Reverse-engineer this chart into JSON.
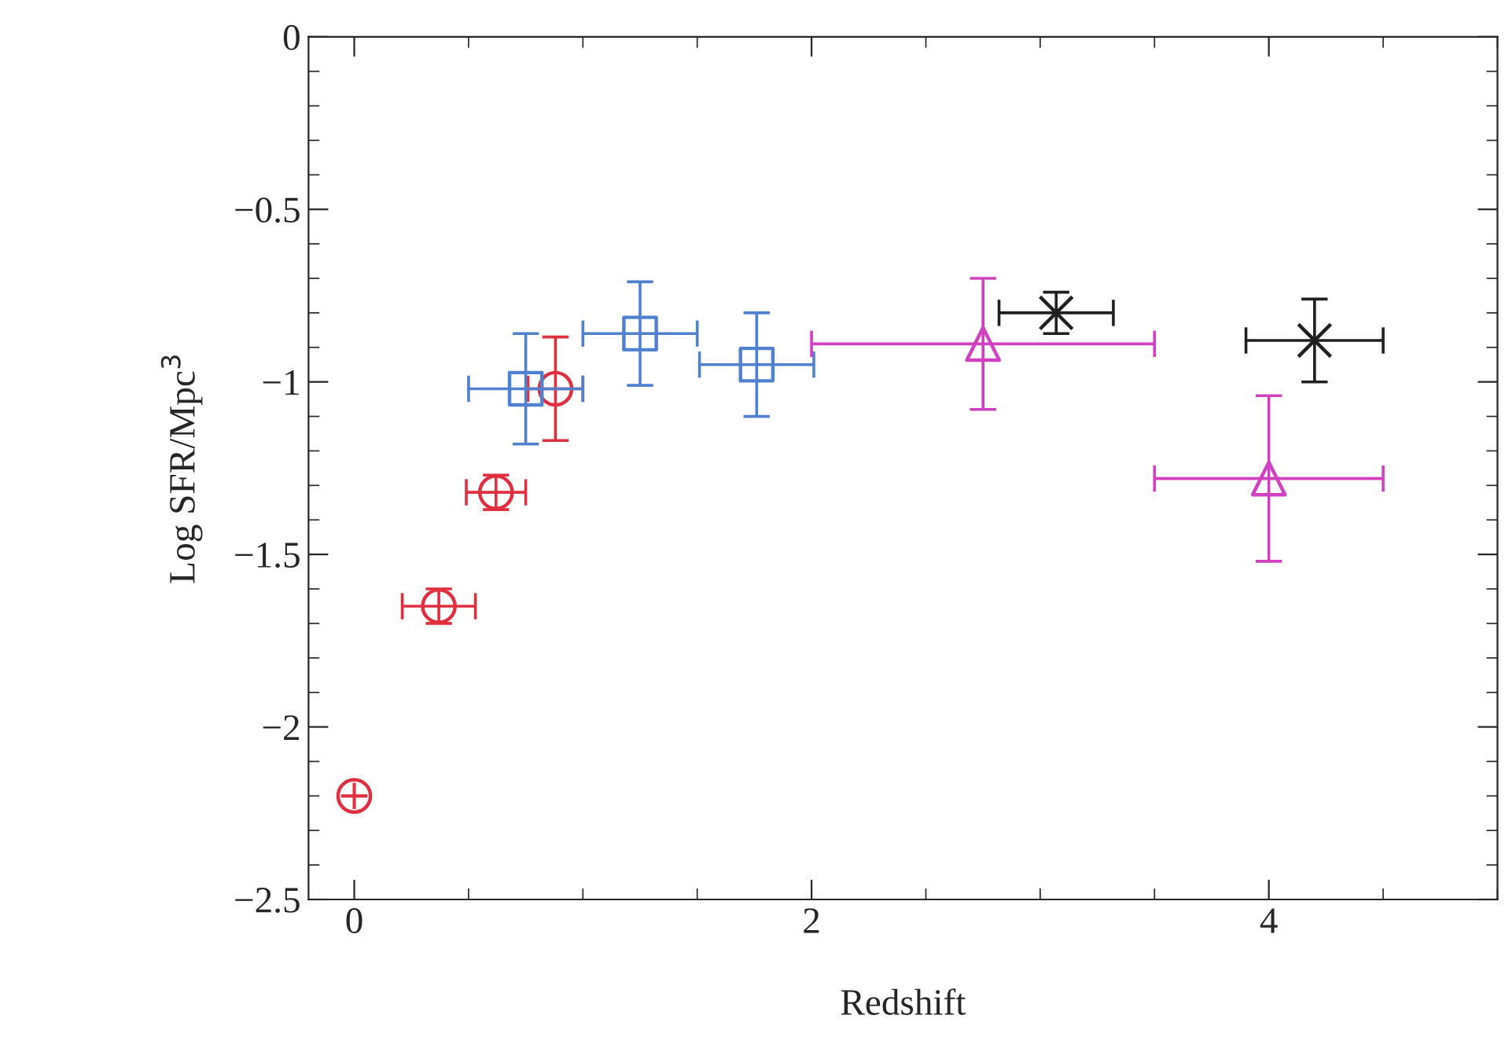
{
  "chart_data": {
    "type": "scatter",
    "xlabel": "Redshift",
    "ylabel": "Log SFR/Mpc$^{3}$",
    "xlim": [
      -0.2,
      5
    ],
    "ylim": [
      -2.5,
      0
    ],
    "xticks": [
      0,
      2,
      4
    ],
    "yticks": [
      0,
      -0.5,
      -1,
      -1.5,
      -2,
      -2.5
    ],
    "grid": false,
    "legend": false,
    "series": [
      {
        "color": "#e03040",
        "marker": "circle",
        "x": [
          0,
          0.37,
          0.62,
          0.88
        ],
        "values": [
          -2.2,
          -1.65,
          -1.32,
          -1.02
        ],
        "errors": [
          null,
          0.05,
          0.05,
          0.15
        ],
        "xerrors": [
          null,
          0.16,
          0.13,
          0.12
        ]
      },
      {
        "color": "#5080d0",
        "marker": "square",
        "x": [
          0.75,
          1.25,
          1.76
        ],
        "values": [
          -1.02,
          -0.86,
          -0.95
        ],
        "errors": [
          0.16,
          0.15,
          0.15
        ],
        "xerrors": [
          0.25,
          0.25,
          0.25
        ]
      },
      {
        "color": "#d040c0",
        "marker": "triangle",
        "x": [
          2.75,
          4.0
        ],
        "values": [
          -0.89,
          -1.28
        ],
        "errors": [
          0.19,
          0.24
        ],
        "xerrors": [
          0.75,
          0.5
        ]
      },
      {
        "color": "#202020",
        "marker": "cross",
        "x": [
          3.07,
          4.2
        ],
        "values": [
          -0.8,
          -0.88
        ],
        "errors": [
          0.06,
          0.12
        ],
        "xerrors": [
          0.25,
          0.3
        ]
      }
    ]
  }
}
